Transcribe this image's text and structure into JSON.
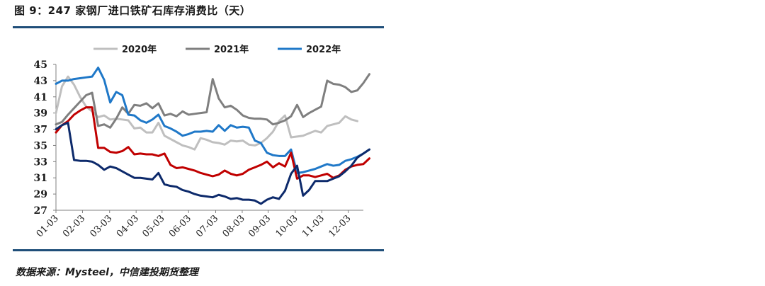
{
  "title": "图 9：247 家钢厂进口铁矿石库存消费比（天）",
  "source": "数据来源：Mysteel，中信建投期货整理",
  "chart_data": {
    "type": "line",
    "title": "图 9：247 家钢厂进口铁矿石库存消费比（天）",
    "xlabel": "",
    "ylabel": "",
    "ylim": [
      27,
      45
    ],
    "yticks": [
      27,
      29,
      31,
      33,
      35,
      37,
      39,
      41,
      43,
      45
    ],
    "xlim": [
      0,
      51
    ],
    "x_tick_positions": [
      0,
      4.4,
      8.9,
      13.3,
      17.6,
      22,
      26.5,
      30.9,
      35.2,
      39.7,
      44.1,
      48.5
    ],
    "x_tick_labels": [
      "01-03",
      "02-03",
      "03-03",
      "04-03",
      "05-03",
      "06-03",
      "07-03",
      "08-03",
      "09-03",
      "10-03",
      "11-03",
      "12-03"
    ],
    "legend_position": "top",
    "series": [
      {
        "name": "2020年",
        "color": "#bfbfbf",
        "values": [
          39.0,
          42.3,
          43.5,
          42.5,
          41.0,
          39.8,
          39.2,
          38.5,
          38.7,
          38.2,
          38.3,
          38.2,
          38.1,
          37.1,
          37.2,
          36.6,
          36.6,
          37.8,
          36.2,
          35.8,
          35.4,
          35.0,
          34.8,
          34.5,
          35.9,
          35.7,
          35.4,
          35.3,
          35.1,
          35.6,
          35.5,
          35.6,
          35.1,
          35.0,
          35.3,
          35.9,
          36.7,
          38.0,
          38.7,
          36.0,
          36.1,
          36.2,
          36.5,
          36.8,
          36.6,
          37.4,
          37.6,
          37.8,
          38.6,
          38.2,
          38.0
        ]
      },
      {
        "name": "2021年",
        "color": "#7f7f7f",
        "values": [
          37.6,
          37.9,
          38.8,
          39.6,
          40.4,
          41.2,
          41.5,
          37.4,
          37.6,
          37.2,
          38.3,
          39.7,
          38.9,
          40.0,
          39.9,
          40.2,
          39.6,
          40.2,
          38.7,
          38.9,
          38.6,
          39.2,
          38.8,
          38.9,
          39.0,
          39.1,
          43.2,
          40.8,
          39.7,
          39.9,
          39.4,
          38.7,
          38.4,
          38.3,
          38.3,
          38.2,
          37.6,
          37.8,
          38.1,
          38.6,
          40.0,
          38.5,
          39.0,
          39.4,
          39.8,
          43.0,
          42.6,
          42.5,
          42.2,
          41.6,
          41.8,
          42.7,
          43.8
        ]
      },
      {
        "name": "2022年",
        "color": "#1f78c8",
        "values": [
          42.6,
          43.0,
          43.0,
          43.2,
          43.3,
          43.4,
          43.5,
          44.6,
          43.1,
          40.3,
          41.6,
          41.2,
          38.8,
          38.7,
          38.1,
          37.8,
          38.2,
          38.8,
          37.4,
          37.1,
          36.7,
          36.2,
          36.4,
          36.7,
          36.7,
          36.8,
          36.7,
          37.5,
          36.8,
          37.5,
          37.2,
          37.3,
          37.2,
          35.6,
          35.3,
          34.1,
          33.8,
          33.7,
          33.7,
          34.5,
          31.6,
          31.7,
          31.9,
          32.1,
          32.4,
          32.7,
          32.5,
          32.6,
          33.1,
          33.3,
          33.6,
          34.0,
          34.5
        ]
      },
      {
        "color": "#c00000",
        "values": [
          36.6,
          37.5,
          38.0,
          38.8,
          39.3,
          39.7,
          39.7,
          34.7,
          34.7,
          34.2,
          34.1,
          34.3,
          34.8,
          33.9,
          34.0,
          33.9,
          33.9,
          33.7,
          34.0,
          32.6,
          32.2,
          32.3,
          32.1,
          31.9,
          31.6,
          31.4,
          31.2,
          31.4,
          31.9,
          31.5,
          31.3,
          31.5,
          32.0,
          32.3,
          32.6,
          33.0,
          32.3,
          32.8,
          32.4,
          34.1,
          30.9,
          31.3,
          31.3,
          31.1,
          31.3,
          31.5,
          31.0,
          31.3,
          32.0,
          32.4,
          32.6,
          32.7,
          33.4
        ]
      },
      {
        "color": "#0d2a6b",
        "values": [
          37.0,
          37.5,
          37.8,
          33.2,
          33.1,
          33.1,
          33.0,
          32.6,
          32.0,
          32.4,
          32.2,
          31.8,
          31.4,
          31.0,
          31.0,
          30.9,
          30.8,
          31.6,
          30.2,
          30.0,
          29.9,
          29.5,
          29.3,
          29.0,
          28.8,
          28.7,
          28.6,
          28.9,
          28.7,
          28.4,
          28.5,
          28.3,
          28.3,
          28.2,
          27.8,
          28.3,
          28.6,
          28.4,
          29.4,
          31.5,
          32.5,
          28.8,
          29.5,
          30.6,
          30.6,
          30.6,
          30.9,
          31.2,
          31.8,
          32.5,
          33.5,
          34.0,
          34.5
        ]
      }
    ]
  }
}
